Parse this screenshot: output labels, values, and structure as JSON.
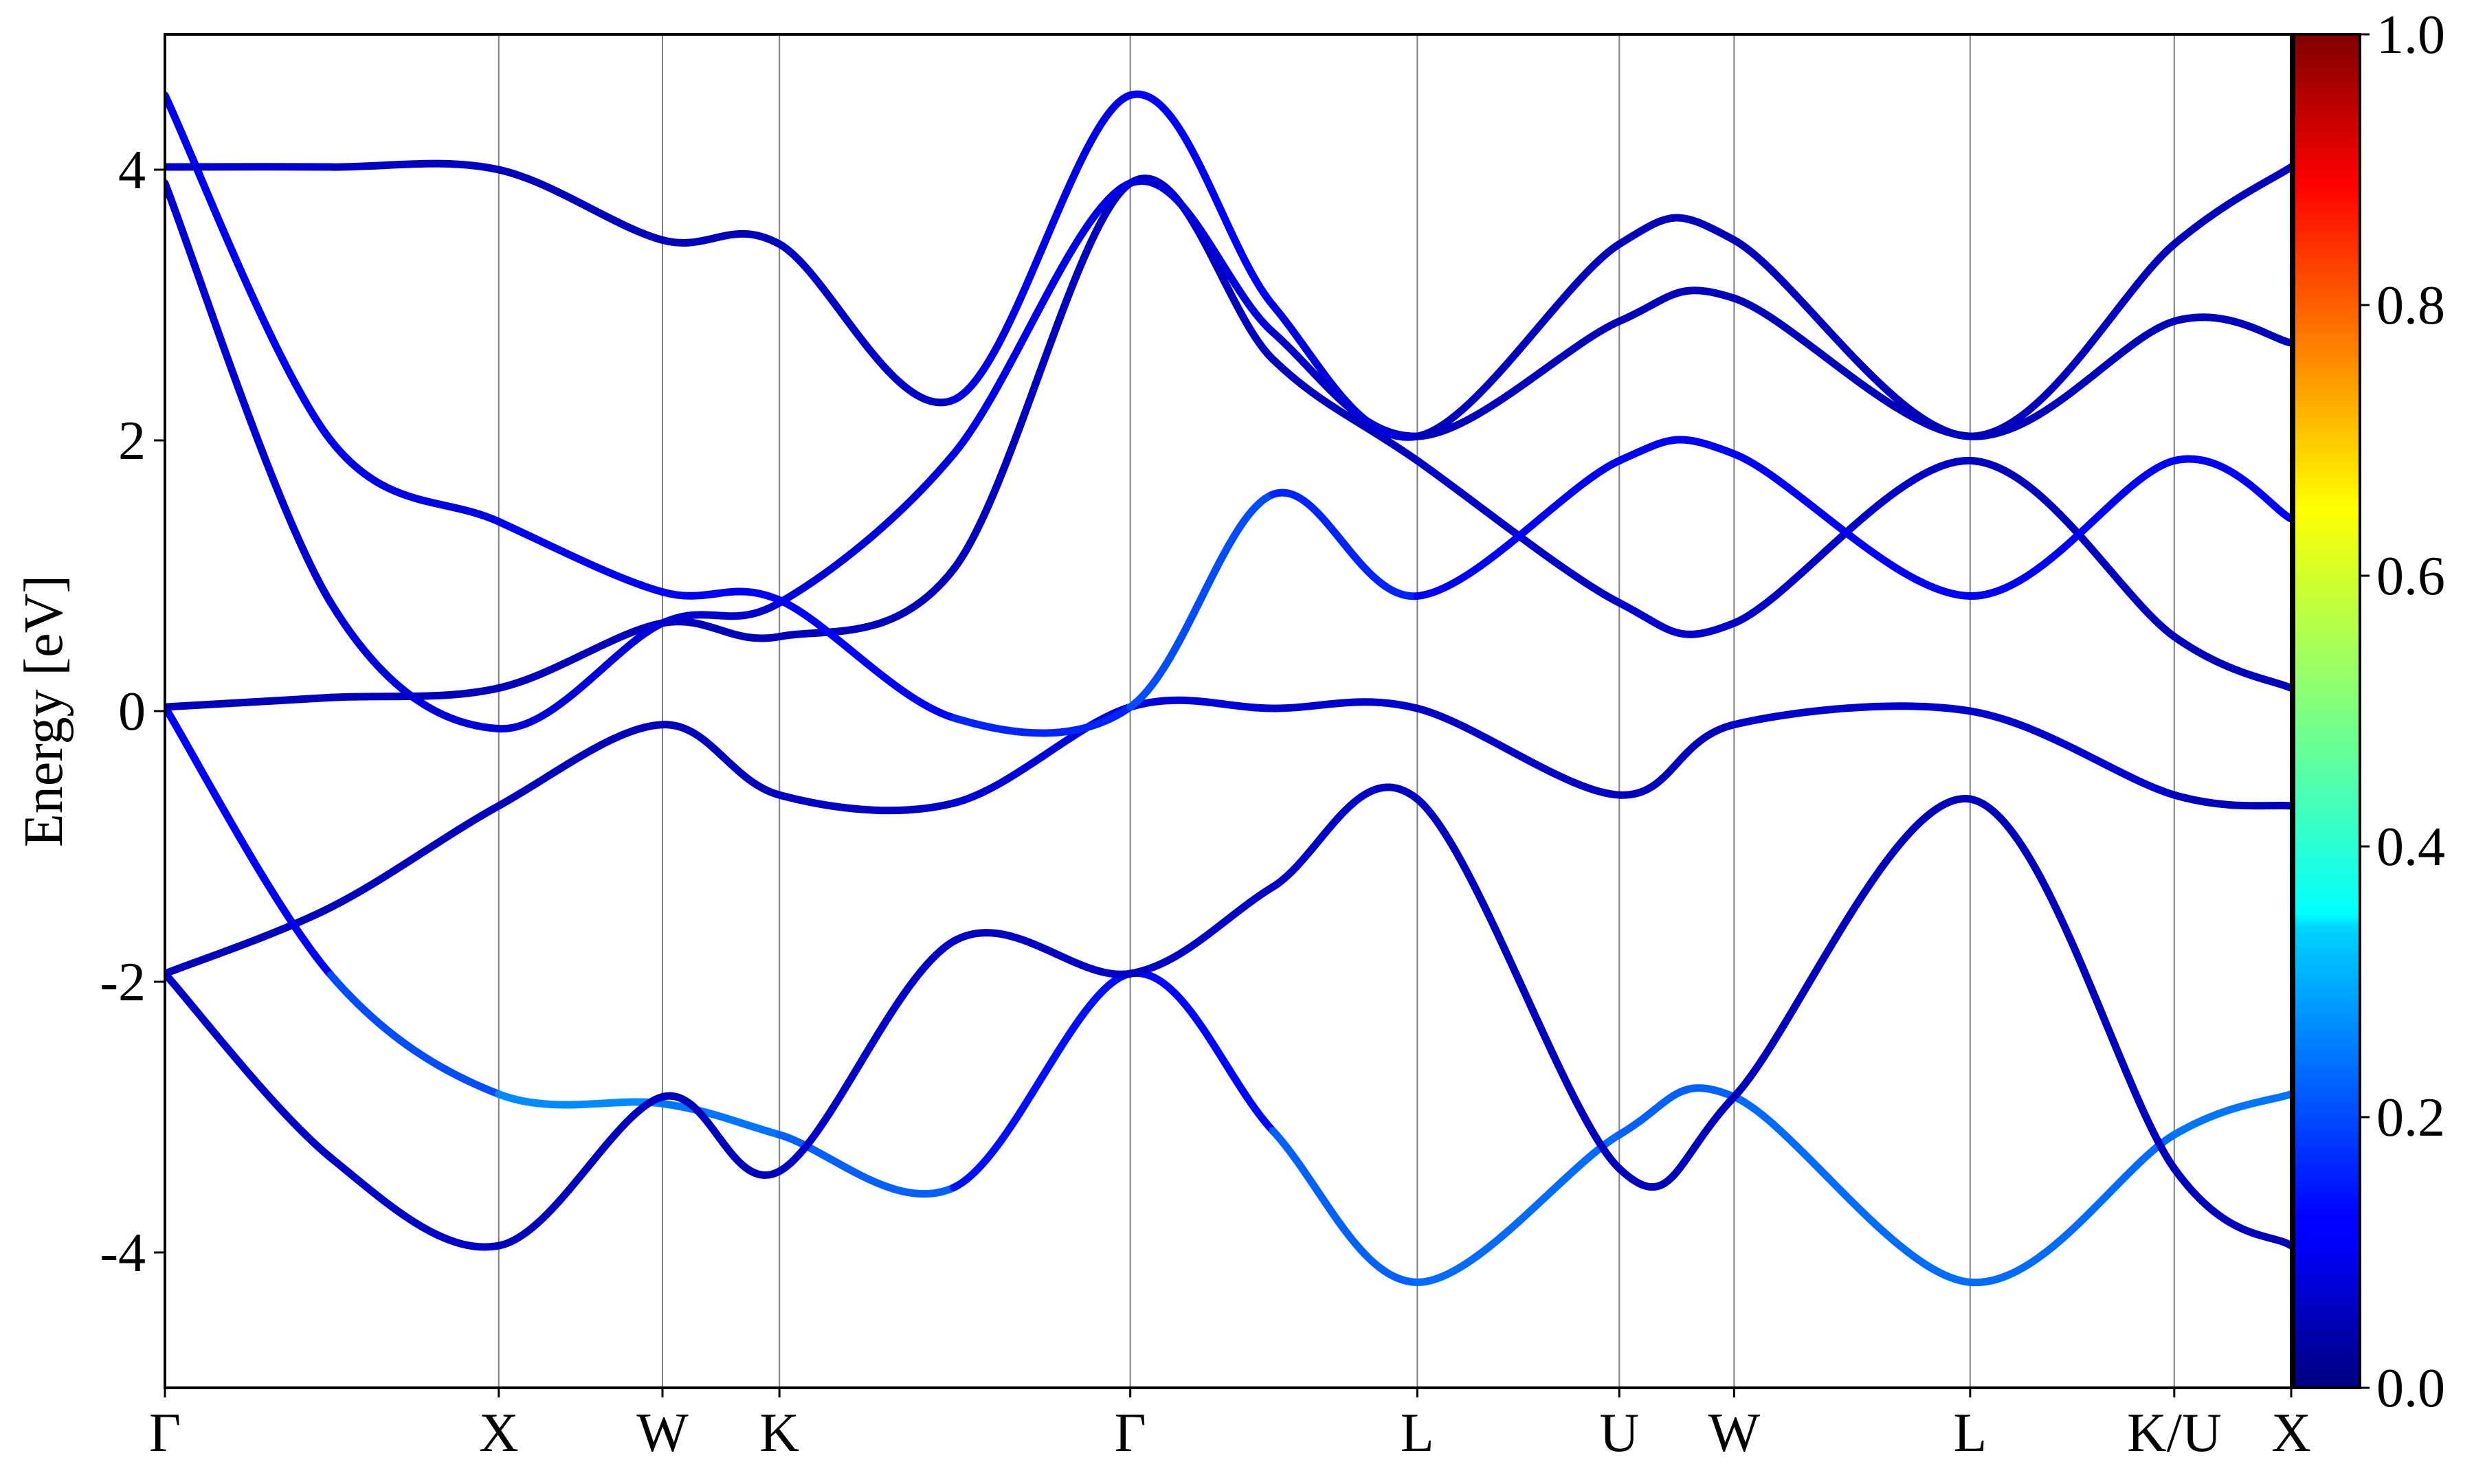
{
  "chart_data": {
    "type": "line",
    "title": "",
    "xlabel": "",
    "ylabel": "Energy [eV]",
    "ylim": [
      -5,
      5
    ],
    "yticks": [
      -4,
      -2,
      0,
      2,
      4
    ],
    "ytick_labels": [
      "-4",
      "-2",
      "0",
      "2",
      "4"
    ],
    "x_range": [
      0,
      1
    ],
    "high_symmetry_points": [
      {
        "label": "Γ",
        "x": 0.0
      },
      {
        "label": "X",
        "x": 0.157
      },
      {
        "label": "W",
        "x": 0.234
      },
      {
        "label": "K",
        "x": 0.289
      },
      {
        "label": "Γ",
        "x": 0.454
      },
      {
        "label": "L",
        "x": 0.589
      },
      {
        "label": "U",
        "x": 0.684
      },
      {
        "label": "W",
        "x": 0.738
      },
      {
        "label": "L",
        "x": 0.849
      },
      {
        "label": "K/U",
        "x": 0.945
      },
      {
        "label": "X",
        "x": 1.0
      }
    ],
    "colorbar": {
      "colormap": "jet",
      "range": [
        0.0,
        1.0
      ],
      "ticks": [
        "0.0",
        "0.2",
        "0.4",
        "0.6",
        "0.8",
        "1.0"
      ]
    },
    "grid": false,
    "legend": "none",
    "series": [
      {
        "x": [
          0,
          0.078,
          0.157,
          0.234,
          0.289,
          0.371,
          0.454,
          0.521,
          0.589,
          0.684,
          0.738,
          0.849,
          0.945,
          1.0
        ],
        "y": [
          -1.94,
          -1.45,
          -0.7,
          -0.1,
          -0.62,
          -0.68,
          0.03,
          0.02,
          0.02,
          -0.62,
          -0.1,
          0.0,
          -0.62,
          -0.7
        ],
        "weights": [
          0.06,
          0.06,
          0.06,
          0.06,
          0.06,
          0.08,
          0.1,
          0.08,
          0.08,
          0.06,
          0.06,
          0.1,
          0.06,
          0.06
        ]
      },
      {
        "x": [
          0,
          0.078,
          0.157,
          0.234,
          0.289,
          0.371,
          0.454,
          0.521,
          0.589,
          0.684,
          0.738,
          0.849,
          0.945,
          1.0
        ],
        "y": [
          0.03,
          -1.95,
          -2.83,
          -2.9,
          -3.13,
          -3.52,
          -1.94,
          -3.1,
          -4.22,
          -3.13,
          -2.85,
          -4.22,
          -3.13,
          -2.83
        ],
        "weights": [
          0.1,
          0.14,
          0.26,
          0.26,
          0.22,
          0.22,
          0.06,
          0.2,
          0.24,
          0.22,
          0.22,
          0.24,
          0.22,
          0.26
        ]
      },
      {
        "x": [
          0,
          0.078,
          0.157,
          0.234,
          0.289,
          0.371,
          0.454,
          0.521,
          0.589,
          0.684,
          0.738,
          0.849,
          0.945,
          1.0
        ],
        "y": [
          -1.94,
          -3.3,
          -3.95,
          -2.85,
          -3.4,
          -1.7,
          -1.94,
          -1.3,
          -0.65,
          -3.38,
          -2.85,
          -0.65,
          -3.38,
          -3.95
        ],
        "weights": [
          0.06,
          0.08,
          0.06,
          0.06,
          0.06,
          0.08,
          0.06,
          0.08,
          0.06,
          0.06,
          0.06,
          0.06,
          0.06,
          0.06
        ]
      },
      {
        "x": [
          0,
          0.078,
          0.157,
          0.234,
          0.289,
          0.371,
          0.454,
          0.521,
          0.589,
          0.684,
          0.738,
          0.849,
          0.945,
          1.0
        ],
        "y": [
          0.03,
          0.1,
          0.17,
          0.65,
          0.55,
          1.05,
          3.9,
          2.6,
          1.85,
          0.8,
          0.65,
          1.85,
          0.55,
          0.17
        ],
        "weights": [
          0.06,
          0.06,
          0.06,
          0.06,
          0.06,
          0.06,
          0.06,
          0.06,
          0.06,
          0.08,
          0.08,
          0.06,
          0.06,
          0.06
        ]
      },
      {
        "x": [
          0,
          0.078,
          0.157,
          0.234,
          0.289,
          0.371,
          0.454,
          0.521,
          0.589,
          0.684,
          0.738,
          0.849,
          0.945,
          1.0
        ],
        "y": [
          3.9,
          0.8,
          -0.13,
          0.65,
          0.8,
          1.9,
          3.9,
          2.8,
          2.03,
          2.88,
          3.05,
          2.03,
          2.88,
          2.72
        ],
        "weights": [
          0.08,
          0.08,
          0.1,
          0.08,
          0.08,
          0.1,
          0.1,
          0.08,
          0.06,
          0.06,
          0.06,
          0.06,
          0.06,
          0.06
        ]
      },
      {
        "x": [
          0,
          0.078,
          0.157,
          0.234,
          0.289,
          0.371,
          0.454,
          0.521,
          0.589,
          0.684,
          0.738,
          0.849,
          0.945,
          1.0
        ],
        "y": [
          4.55,
          2.0,
          1.4,
          0.88,
          0.82,
          -0.05,
          0.03,
          1.6,
          0.85,
          1.85,
          1.9,
          0.85,
          1.85,
          1.42
        ],
        "weights": [
          0.12,
          0.1,
          0.1,
          0.12,
          0.12,
          0.12,
          0.2,
          0.2,
          0.12,
          0.12,
          0.12,
          0.12,
          0.12,
          0.12
        ]
      },
      {
        "x": [
          0,
          0.078,
          0.157,
          0.234,
          0.289,
          0.371,
          0.454,
          0.521,
          0.589,
          0.684,
          0.738,
          0.849,
          0.945,
          1.0
        ],
        "y": [
          4.02,
          4.02,
          4.0,
          3.48,
          3.45,
          2.3,
          4.55,
          3.0,
          2.03,
          3.45,
          3.48,
          2.03,
          3.45,
          4.02
        ],
        "weights": [
          0.08,
          0.08,
          0.06,
          0.06,
          0.06,
          0.08,
          0.12,
          0.12,
          0.06,
          0.06,
          0.06,
          0.06,
          0.06,
          0.06
        ]
      }
    ]
  }
}
